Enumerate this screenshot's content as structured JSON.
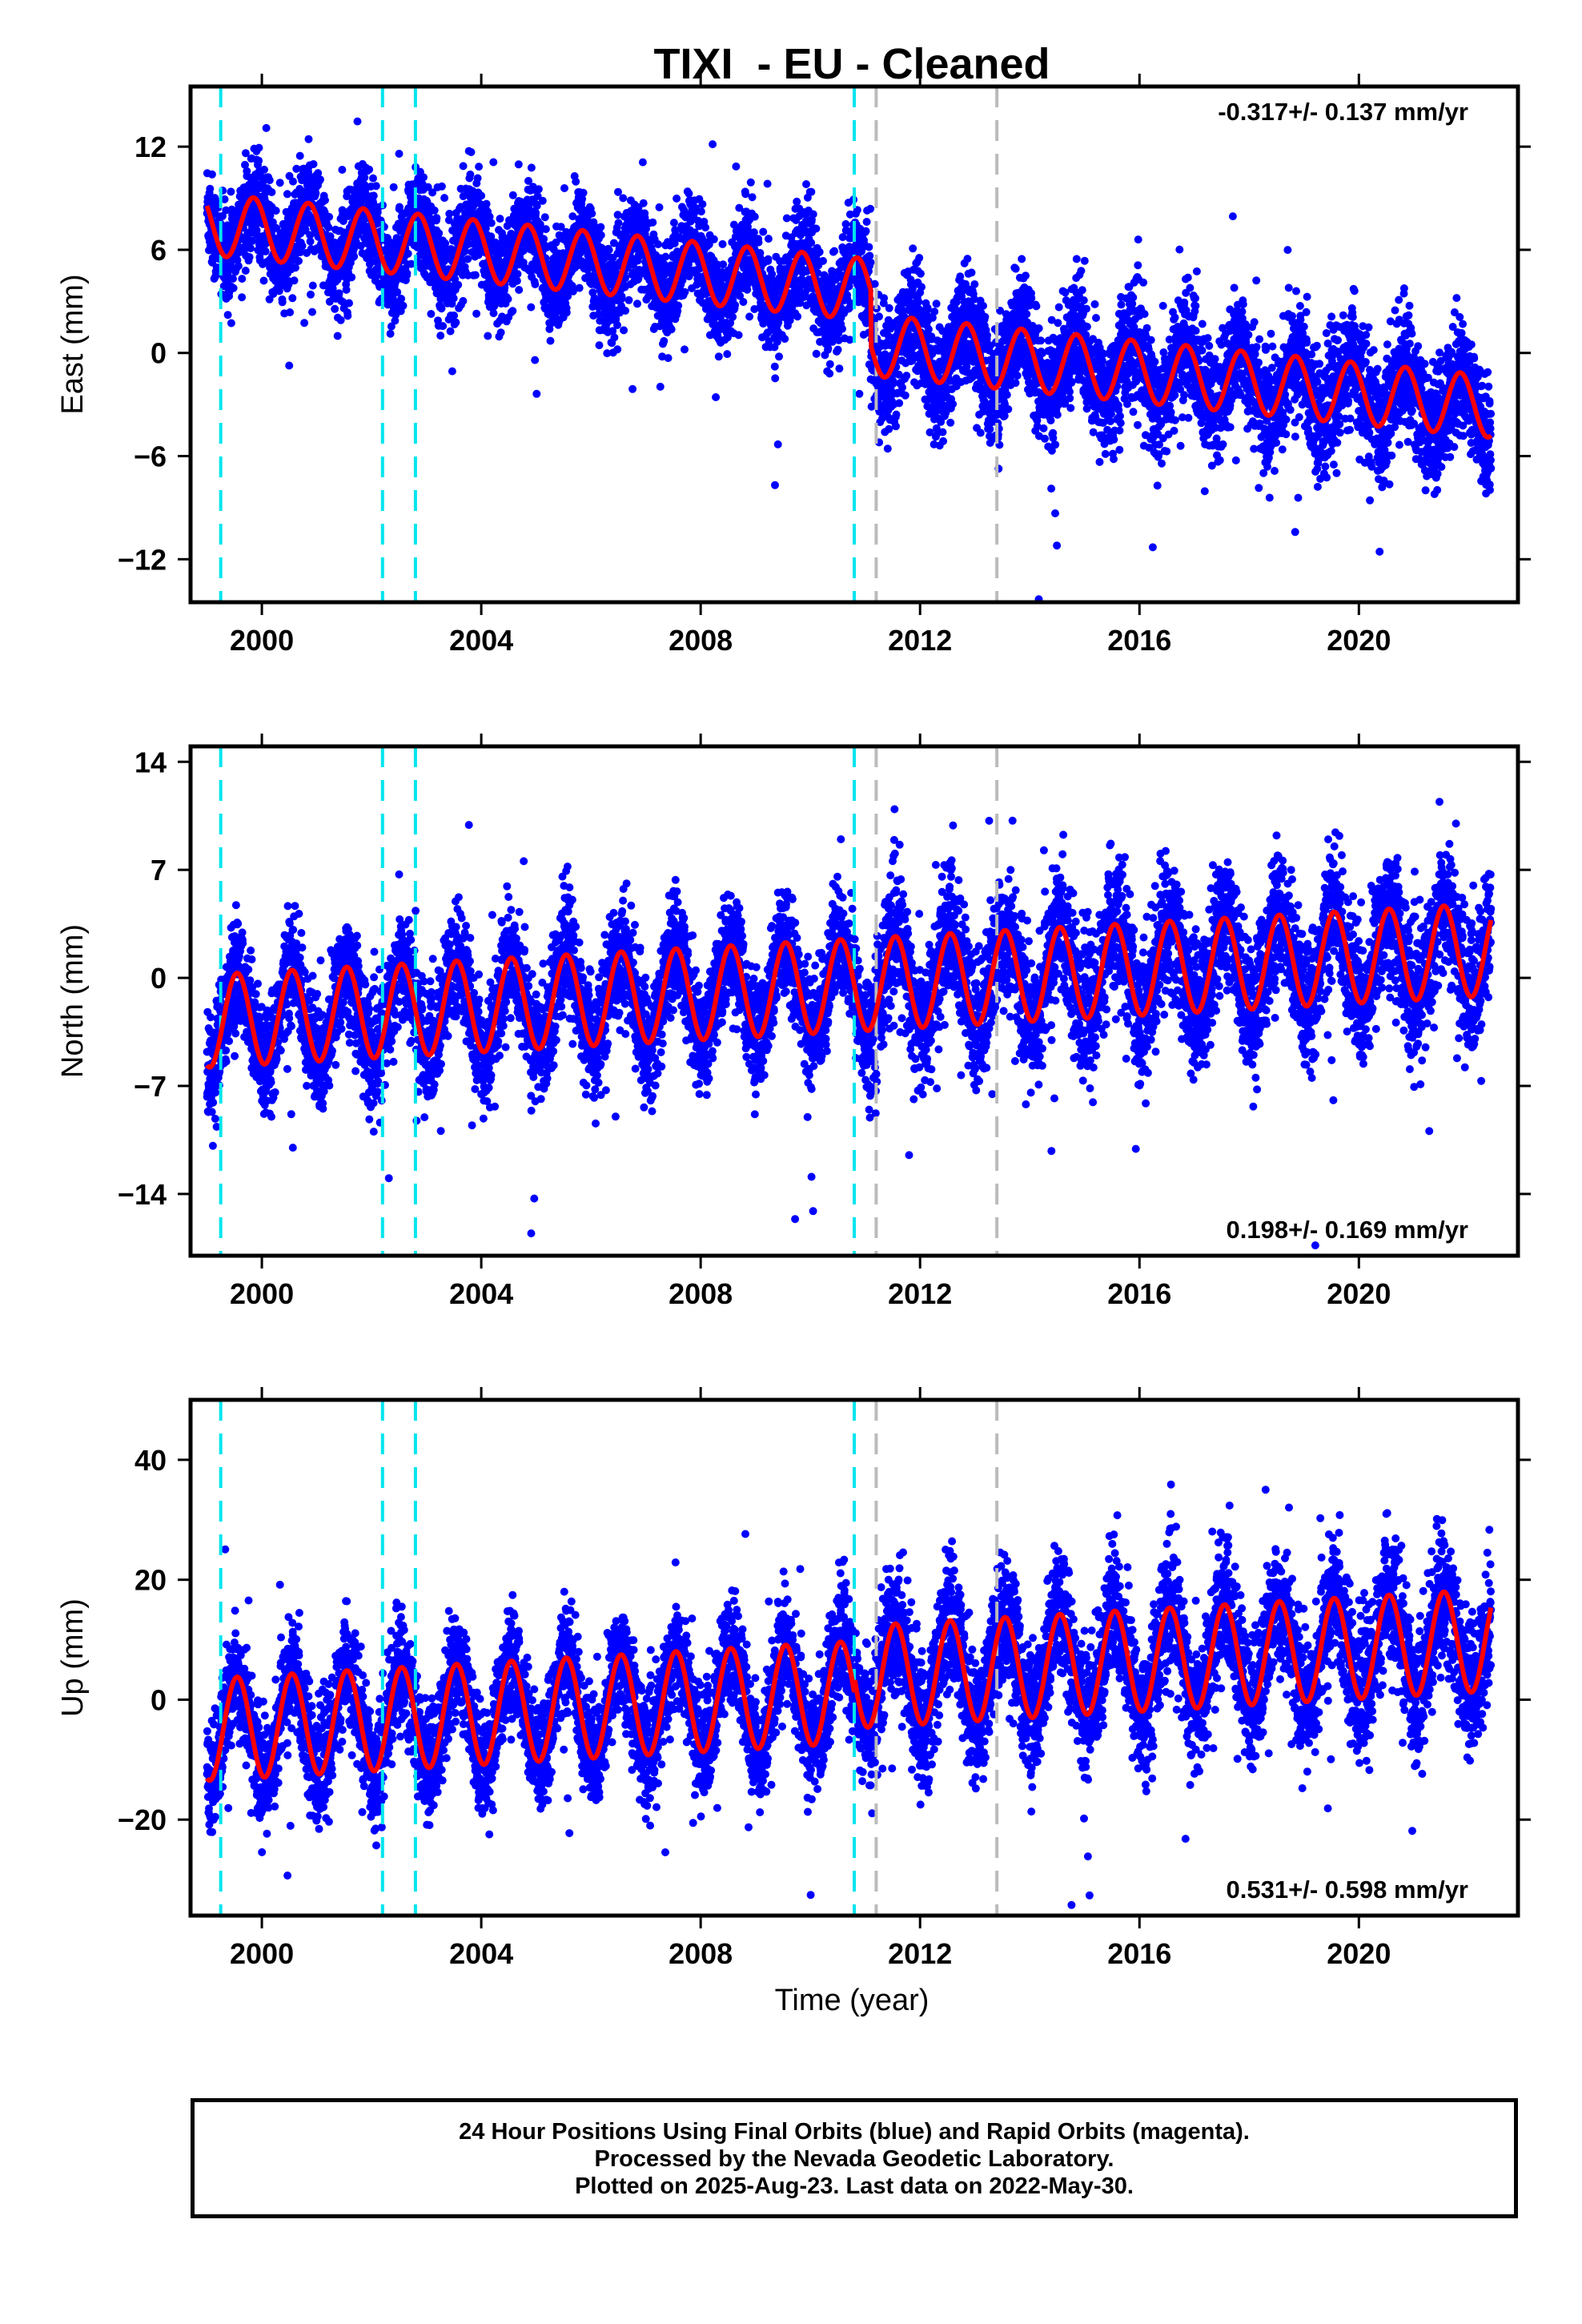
{
  "chart_data": {
    "type": "scatter",
    "title": "TIXI  - EU - Cleaned",
    "xlabel": "Time (year)",
    "xlim": [
      1998.7,
      2022.9
    ],
    "x_ticks": [
      "2000",
      "2004",
      "2008",
      "2012",
      "2016",
      "2020"
    ],
    "x_tick_values": [
      2000,
      2004,
      2008,
      2012,
      2016,
      2020
    ],
    "colors": {
      "points": "#0000ff",
      "model": "#ff0000",
      "cyan_lines": "#00e5ee",
      "gray_lines": "#bbbbbb"
    },
    "time_range": [
      1999.0,
      2022.41
    ],
    "cyan_dashed_lines": [
      1999.25,
      2002.2,
      2002.8,
      2010.8
    ],
    "gray_dashed_lines": [
      2011.2,
      2013.4
    ],
    "panels": [
      {
        "ylabel": "East (mm)",
        "ylim": [
          -14.5,
          15.5
        ],
        "y_ticks": [
          "12",
          "6",
          "0",
          "-6",
          "-12"
        ],
        "y_tick_values": [
          12,
          6,
          0,
          -6,
          -12
        ],
        "rate": "-0.317+/- 0.137 mm/yr",
        "model": {
          "type": "trend_seasonal_steps",
          "y_at_1999": 7.5,
          "velocity_mm_per_yr": -0.317,
          "annual_amplitude": 1.8,
          "annual_peak_fraction": 0.85,
          "steps": [
            {
              "year": 2011.1,
              "offset": -3.2
            }
          ],
          "noise_sd": 1.4
        }
      },
      {
        "ylabel": "North (mm)",
        "ylim": [
          -18,
          15
        ],
        "y_ticks": [
          "14",
          "7",
          "0",
          "-7",
          "-14"
        ],
        "y_tick_values": [
          14,
          7,
          0,
          -7,
          -14
        ],
        "rate": "0.198+/- 0.169 mm/yr",
        "model": {
          "type": "trend_seasonal_steps",
          "y_at_1999": -2.8,
          "velocity_mm_per_yr": 0.198,
          "annual_amplitude": 3.0,
          "annual_peak_fraction": 0.55,
          "steps": [],
          "noise_sd": 1.8
        }
      },
      {
        "ylabel": "Up (mm)",
        "ylim": [
          -36,
          50
        ],
        "y_ticks": [
          "40",
          "20",
          "0",
          "-20"
        ],
        "y_tick_values": [
          40,
          20,
          0,
          -20
        ],
        "rate": "0.531+/- 0.598 mm/yr",
        "model": {
          "type": "trend_seasonal_steps",
          "y_at_1999": -5.0,
          "velocity_mm_per_yr": 0.531,
          "annual_amplitude": 8.5,
          "annual_peak_fraction": 0.55,
          "steps": [
            {
              "year": 2010.8,
              "offset": 2.5
            }
          ],
          "noise_sd": 4.5
        }
      }
    ]
  },
  "footer": {
    "line1": "24 Hour Positions Using Final Orbits (blue) and Rapid Orbits (magenta).",
    "line2": "Processed by the Nevada Geodetic Laboratory.",
    "line3": "Plotted on 2025-Aug-23. Last data on 2022-May-30."
  }
}
